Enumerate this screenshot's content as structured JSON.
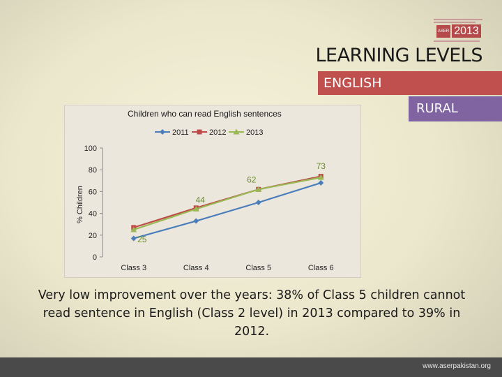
{
  "header": {
    "title": "LEARNING LEVELS",
    "subject_tag": "ENGLISH",
    "area_tag": "RURAL"
  },
  "logo": {
    "year": "2013",
    "badge": "ASER"
  },
  "footer": {
    "url": "www.aserpakistan.org"
  },
  "caption": {
    "text": "Very low improvement over the years: 38% of Class 5 children cannot read sentence in English (Class 2 level) in 2013 compared to 39% in 2012."
  },
  "colors": {
    "series_2011": "#4a7ebb",
    "series_2012": "#be4b48",
    "series_2013": "#98b954",
    "label_color": "#6a8f2a"
  },
  "chart_data": {
    "type": "line",
    "title": "Children who can read English sentences",
    "ylabel": "% Children",
    "xlabel": "",
    "categories": [
      "Class 3",
      "Class 4",
      "Class 5",
      "Class 6"
    ],
    "ylim": [
      0,
      100
    ],
    "yticks": [
      0,
      20,
      40,
      60,
      80,
      100
    ],
    "legend_position": "top",
    "series": [
      {
        "name": "2011",
        "marker": "diamond",
        "values": [
          17,
          33,
          50,
          68
        ]
      },
      {
        "name": "2012",
        "marker": "square",
        "values": [
          27,
          45,
          62,
          74
        ]
      },
      {
        "name": "2013",
        "marker": "triangle",
        "values": [
          25,
          44,
          62,
          73
        ]
      }
    ],
    "data_labels": [
      {
        "series": "2013",
        "category": "Class 3",
        "text": "25"
      },
      {
        "series": "2013",
        "category": "Class 4",
        "text": "44"
      },
      {
        "series": "2013",
        "category": "Class 5",
        "text": "62"
      },
      {
        "series": "2013",
        "category": "Class 6",
        "text": "73"
      }
    ]
  }
}
